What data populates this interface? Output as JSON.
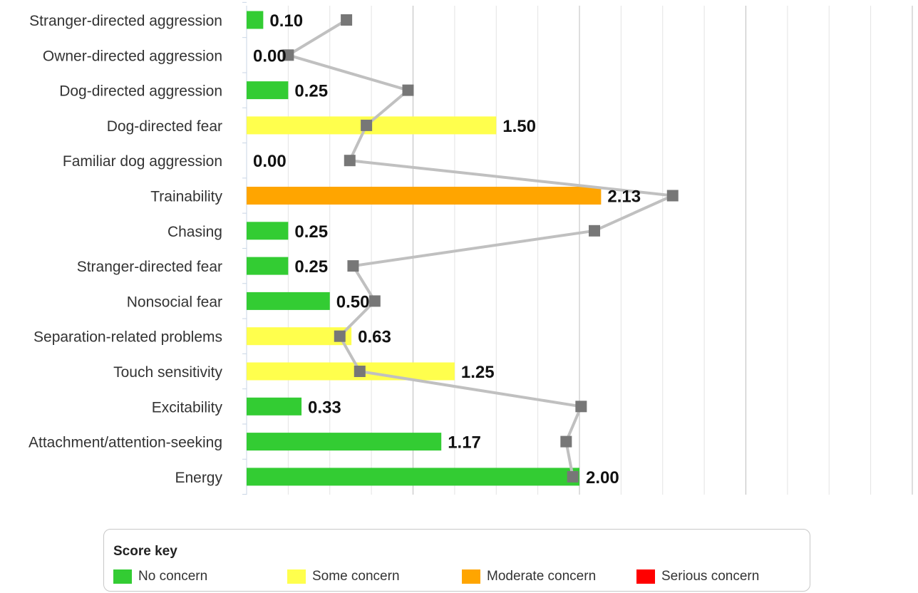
{
  "chart_data": {
    "type": "bar",
    "categories": [
      "Stranger-directed aggression",
      "Owner-directed aggression",
      "Dog-directed aggression",
      "Dog-directed fear",
      "Familiar dog aggression",
      "Trainability",
      "Chasing",
      "Stranger-directed fear",
      "Nonsocial fear",
      "Separation-related problems",
      "Touch sensitivity",
      "Excitability",
      "Attachment/attention-seeking",
      "Energy"
    ],
    "values": [
      0.1,
      0.0,
      0.25,
      1.5,
      0.0,
      2.13,
      0.25,
      0.25,
      0.5,
      0.63,
      1.25,
      0.33,
      1.17,
      2.0
    ],
    "value_labels": [
      "0.10",
      "0.00",
      "0.25",
      "1.50",
      "0.00",
      "2.13",
      "0.25",
      "0.25",
      "0.50",
      "0.63",
      "1.25",
      "0.33",
      "1.17",
      "2.00"
    ],
    "bar_levels": [
      "none",
      "none",
      "none",
      "some",
      "none",
      "moderate",
      "none",
      "none",
      "none",
      "some",
      "some",
      "none",
      "none",
      "none"
    ],
    "comparison_values": [
      0.6,
      0.25,
      0.97,
      0.72,
      0.62,
      2.56,
      2.09,
      0.64,
      0.77,
      0.56,
      0.68,
      2.01,
      1.92,
      1.96
    ],
    "xlim": [
      0,
      4
    ],
    "xticks": [
      "0",
      "1",
      "2",
      "3",
      "4"
    ],
    "grid": true,
    "xlabel": "",
    "ylabel": "",
    "title": ""
  },
  "colors": {
    "none": "#33cc33",
    "some": "#ffff4d",
    "moderate": "#ffa500",
    "serious": "#ff0000",
    "comparison_line": "#c0c0c0",
    "comparison_marker": "#777777"
  },
  "legend": {
    "title": "Score key",
    "items": [
      {
        "label": "No concern",
        "color": "#33cc33"
      },
      {
        "label": "Some concern",
        "color": "#ffff4d"
      },
      {
        "label": "Moderate concern",
        "color": "#ffa500"
      },
      {
        "label": "Serious concern",
        "color": "#ff0000"
      }
    ]
  }
}
